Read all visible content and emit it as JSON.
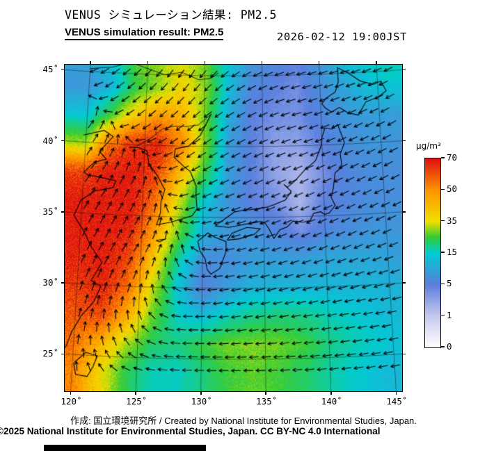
{
  "header": {
    "title_jp": "VENUS シミュレーション結果: PM2.5",
    "title_en": "VENUS simulation result: PM2.5",
    "datetime": "2026-02-12 19:00JST"
  },
  "footer": {
    "credit": "作成: 国立環境研究所 / Created by National Institute for Environmental Studies, Japan.",
    "license": "©2025 National Institute for Environmental Studies, Japan. CC BY-NC 4.0 International"
  },
  "chart_data": {
    "type": "heatmap",
    "title": "VENUS simulation result: PM2.5",
    "units": "μg/m³",
    "degree_symbol": "˚",
    "lon_ticks": [
      120,
      125,
      130,
      135,
      140,
      145
    ],
    "lat_ticks": [
      25,
      30,
      35,
      40,
      45
    ],
    "colorbar": {
      "unit": "μg/m³",
      "tick_values": [
        0,
        1,
        5,
        15,
        35,
        50,
        70
      ],
      "stops": [
        [
          0,
          "#ffffff"
        ],
        [
          1,
          "#c6c8ef"
        ],
        [
          5,
          "#5b7fdd"
        ],
        [
          15,
          "#00ccd4"
        ],
        [
          25,
          "#35cc35"
        ],
        [
          35,
          "#f0e000"
        ],
        [
          50,
          "#ff9500"
        ],
        [
          70,
          "#de1111"
        ]
      ]
    },
    "pm25_grid": {
      "lon0": 120,
      "dlon": 2,
      "lat0": 46,
      "dlat": -2,
      "values": [
        [
          10,
          14,
          26,
          30,
          34,
          28,
          14,
          8,
          6,
          5,
          8,
          12,
          15,
          18
        ],
        [
          8,
          12,
          24,
          30,
          38,
          30,
          13,
          6,
          5,
          4,
          7,
          10,
          13,
          14
        ],
        [
          14,
          26,
          40,
          50,
          45,
          28,
          11,
          5,
          4,
          4,
          6,
          8,
          9,
          9
        ],
        [
          30,
          55,
          66,
          68,
          52,
          30,
          9,
          5,
          3,
          3,
          5,
          7,
          8,
          8
        ],
        [
          62,
          70,
          70,
          62,
          42,
          24,
          9,
          5,
          3,
          2,
          4,
          6,
          7,
          7
        ],
        [
          70,
          70,
          70,
          55,
          33,
          14,
          8,
          5,
          4,
          2,
          5,
          6,
          7,
          7
        ],
        [
          70,
          70,
          68,
          48,
          28,
          11,
          8,
          8,
          6,
          4,
          6,
          7,
          8,
          8
        ],
        [
          68,
          70,
          62,
          40,
          18,
          7,
          7,
          9,
          9,
          9,
          10,
          10,
          10,
          9
        ],
        [
          64,
          68,
          56,
          33,
          14,
          5,
          9,
          12,
          12,
          12,
          12,
          12,
          12,
          11
        ],
        [
          60,
          62,
          46,
          28,
          16,
          13,
          17,
          20,
          21,
          20,
          17,
          15,
          13,
          12
        ],
        [
          56,
          45,
          32,
          22,
          20,
          24,
          28,
          29,
          28,
          25,
          20,
          17,
          15,
          13
        ],
        [
          52,
          38,
          24,
          17,
          16,
          20,
          25,
          27,
          25,
          22,
          18,
          15,
          13,
          12
        ]
      ]
    },
    "wind_grid": {
      "lon0": 120,
      "dlon": 4.4,
      "lat0": 46,
      "dlat": -4.4,
      "u": [
        [
          -1.0,
          -1.0,
          -0.8,
          -1.6,
          -2.0,
          -2.0,
          -1.8
        ],
        [
          0.4,
          -0.6,
          -1.2,
          -1.8,
          -2.0,
          -2.0,
          -1.8
        ],
        [
          0.9,
          0.5,
          -1.0,
          -2.0,
          -2.2,
          -2.0,
          -1.9
        ],
        [
          0.9,
          0.9,
          -0.2,
          -2.0,
          -2.3,
          -2.2,
          -2.0
        ],
        [
          0.4,
          0.0,
          -1.2,
          -2.2,
          -2.3,
          -2.3,
          -2.2
        ],
        [
          0.0,
          -1.0,
          -2.0,
          -2.4,
          -2.4,
          -2.3,
          -2.2
        ]
      ],
      "v": [
        [
          -0.5,
          -1.0,
          -1.4,
          -1.0,
          -0.6,
          -0.6,
          -0.9
        ],
        [
          0.5,
          -0.4,
          -1.0,
          -1.0,
          -0.6,
          -0.9,
          -1.0
        ],
        [
          1.4,
          1.0,
          -0.5,
          -0.9,
          -1.0,
          -1.0,
          -1.0
        ],
        [
          1.8,
          1.4,
          0.4,
          -0.5,
          -0.9,
          -1.0,
          -0.9
        ],
        [
          1.4,
          0.9,
          0.0,
          -0.4,
          -0.5,
          -0.5,
          -0.5
        ],
        [
          0.9,
          0.4,
          0.0,
          0.0,
          -0.2,
          -0.4,
          -0.5
        ]
      ]
    },
    "coastlines": [
      [
        [
          119.8,
          40.5
        ],
        [
          121.5,
          40.9
        ],
        [
          122.3,
          40.5
        ],
        [
          121.2,
          39.4
        ],
        [
          121.8,
          38.9
        ],
        [
          120.8,
          38.6
        ],
        [
          120.0,
          37.9
        ],
        [
          120.4,
          37.7
        ],
        [
          122.0,
          37.5
        ],
        [
          122.7,
          37.4
        ],
        [
          122.5,
          36.9
        ],
        [
          121.0,
          36.6
        ],
        [
          119.9,
          35.9
        ],
        [
          119.4,
          34.8
        ],
        [
          120.3,
          33.7
        ],
        [
          121.0,
          32.6
        ],
        [
          121.9,
          31.6
        ],
        [
          121.1,
          30.3
        ],
        [
          121.9,
          29.9
        ],
        [
          121.4,
          28.8
        ],
        [
          120.5,
          27.8
        ],
        [
          119.8,
          26.6
        ],
        [
          119.4,
          25.5
        ],
        [
          118.6,
          24.7
        ]
      ],
      [
        [
          123.7,
          39.8
        ],
        [
          124.5,
          39.8
        ],
        [
          125.2,
          39.6
        ],
        [
          125.4,
          38.7
        ],
        [
          126.2,
          37.8
        ],
        [
          126.8,
          36.9
        ],
        [
          126.5,
          36.0
        ],
        [
          126.5,
          35.3
        ],
        [
          126.2,
          34.4
        ],
        [
          127.3,
          34.6
        ],
        [
          128.4,
          34.9
        ],
        [
          129.1,
          35.1
        ],
        [
          129.5,
          35.6
        ],
        [
          129.4,
          36.5
        ],
        [
          129.4,
          37.2
        ],
        [
          128.9,
          38.2
        ],
        [
          128.3,
          38.6
        ],
        [
          127.5,
          39.2
        ],
        [
          127.6,
          39.8
        ],
        [
          128.7,
          40.0
        ],
        [
          129.7,
          40.8
        ],
        [
          130.6,
          42.3
        ]
      ],
      [
        [
          130.4,
          31.3
        ],
        [
          130.2,
          32.1
        ],
        [
          129.8,
          32.6
        ],
        [
          129.6,
          33.3
        ],
        [
          130.4,
          33.9
        ],
        [
          131.0,
          33.6
        ],
        [
          131.9,
          33.3
        ],
        [
          131.9,
          32.6
        ],
        [
          131.4,
          31.4
        ],
        [
          130.7,
          31.0
        ],
        [
          130.4,
          31.3
        ]
      ],
      [
        [
          132.0,
          33.4
        ],
        [
          133.0,
          33.5
        ],
        [
          134.2,
          33.8
        ],
        [
          134.7,
          34.2
        ],
        [
          133.6,
          34.3
        ],
        [
          132.4,
          33.9
        ],
        [
          132.0,
          33.4
        ]
      ],
      [
        [
          131.0,
          34.4
        ],
        [
          132.1,
          34.3
        ],
        [
          133.3,
          34.5
        ],
        [
          134.7,
          34.7
        ],
        [
          135.1,
          34.6
        ],
        [
          135.4,
          34.2
        ],
        [
          135.8,
          33.5
        ],
        [
          136.3,
          34.1
        ],
        [
          136.9,
          34.3
        ],
        [
          137.4,
          34.7
        ],
        [
          138.2,
          34.6
        ],
        [
          138.8,
          34.7
        ],
        [
          139.1,
          35.2
        ],
        [
          139.7,
          35.3
        ],
        [
          140.0,
          35.1
        ],
        [
          140.4,
          35.2
        ],
        [
          140.9,
          35.7
        ],
        [
          140.6,
          36.3
        ],
        [
          140.8,
          36.9
        ],
        [
          141.0,
          38.0
        ],
        [
          141.6,
          38.4
        ],
        [
          141.5,
          39.3
        ],
        [
          141.9,
          40.1
        ],
        [
          141.4,
          41.4
        ],
        [
          140.9,
          41.1
        ],
        [
          140.3,
          41.2
        ],
        [
          140.0,
          40.5
        ],
        [
          139.9,
          39.9
        ],
        [
          139.4,
          38.9
        ],
        [
          138.5,
          38.3
        ],
        [
          137.6,
          37.5
        ],
        [
          137.0,
          37.1
        ],
        [
          136.7,
          37.3
        ],
        [
          137.3,
          36.8
        ],
        [
          136.8,
          36.2
        ],
        [
          135.9,
          35.9
        ],
        [
          135.2,
          35.7
        ],
        [
          134.4,
          35.6
        ],
        [
          133.3,
          35.5
        ],
        [
          132.6,
          35.4
        ],
        [
          131.8,
          34.9
        ],
        [
          131.0,
          34.4
        ]
      ],
      [
        [
          140.4,
          42.6
        ],
        [
          140.1,
          42.9
        ],
        [
          140.5,
          43.3
        ],
        [
          141.3,
          43.7
        ],
        [
          141.6,
          44.4
        ],
        [
          141.6,
          45.4
        ],
        [
          142.5,
          45.0
        ],
        [
          143.5,
          44.4
        ],
        [
          144.6,
          44.1
        ],
        [
          145.3,
          44.3
        ],
        [
          145.7,
          43.6
        ],
        [
          145.0,
          43.2
        ],
        [
          143.9,
          42.9
        ],
        [
          143.2,
          42.0
        ],
        [
          142.3,
          42.2
        ],
        [
          141.6,
          42.6
        ],
        [
          140.9,
          42.3
        ],
        [
          140.4,
          42.6
        ]
      ],
      [
        [
          121.0,
          25.2
        ],
        [
          121.9,
          25.0
        ],
        [
          121.6,
          24.2
        ],
        [
          121.2,
          23.5
        ],
        [
          120.3,
          23.6
        ],
        [
          120.1,
          24.4
        ],
        [
          121.0,
          25.2
        ]
      ],
      [
        [
          126.2,
          33.3
        ],
        [
          126.9,
          33.4
        ],
        [
          126.5,
          33.2
        ],
        [
          126.2,
          33.3
        ]
      ],
      [
        [
          141.8,
          46.0
        ],
        [
          142.2,
          45.6
        ],
        [
          142.8,
          46.0
        ]
      ]
    ],
    "borders": [
      [
        [
          120.0,
          45.2
        ],
        [
          122.0,
          45.4
        ],
        [
          123.5,
          45.8
        ],
        [
          125.0,
          45.4
        ],
        [
          126.5,
          45.0
        ],
        [
          128.0,
          45.2
        ],
        [
          129.5,
          44.7
        ],
        [
          130.5,
          44.8
        ],
        [
          131.2,
          45.2
        ]
      ],
      [
        [
          124.3,
          39.9
        ],
        [
          125.5,
          40.5
        ],
        [
          126.5,
          41.2
        ],
        [
          127.5,
          41.4
        ],
        [
          128.5,
          41.4
        ]
      ],
      [
        [
          128.5,
          41.4
        ],
        [
          129.5,
          41.5
        ],
        [
          130.2,
          42.0
        ],
        [
          130.6,
          42.3
        ]
      ]
    ]
  }
}
